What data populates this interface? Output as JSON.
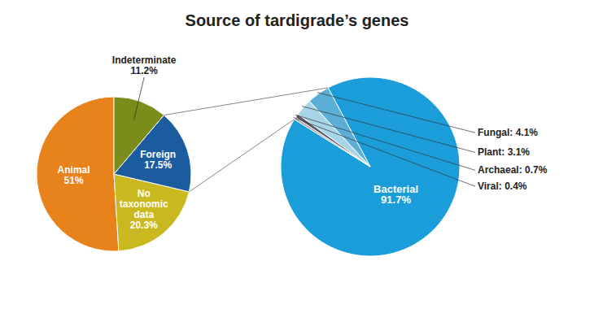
{
  "chart_data": [
    {
      "type": "pie",
      "title": "Source of tardigrade’s genes",
      "values": [
        51.0,
        20.3,
        17.5,
        11.2
      ],
      "value_labels": [
        "Animal\n51%",
        "No\ntaxonomic\ndata\n20.3%",
        "Foreign\n17.5%",
        "Indeterminate\n11.2%"
      ],
      "colors": [
        "#E8821A",
        "#C9B820",
        "#1A5C9E",
        "#7A8C1A"
      ]
    },
    {
      "type": "pie",
      "values": [
        91.7,
        4.1,
        3.1,
        0.7,
        0.4
      ],
      "value_labels": [
        "Bacterial\n91.7%",
        "Fungal: 4.1%",
        "Plant: 3.1%",
        "Archaeal: 0.7%",
        "Viral: 0.4%"
      ],
      "colors": [
        "#1B9DD9",
        "#5BAFD6",
        "#A8D4E8",
        "#5A5A6A",
        "#9E9E9E"
      ]
    }
  ]
}
